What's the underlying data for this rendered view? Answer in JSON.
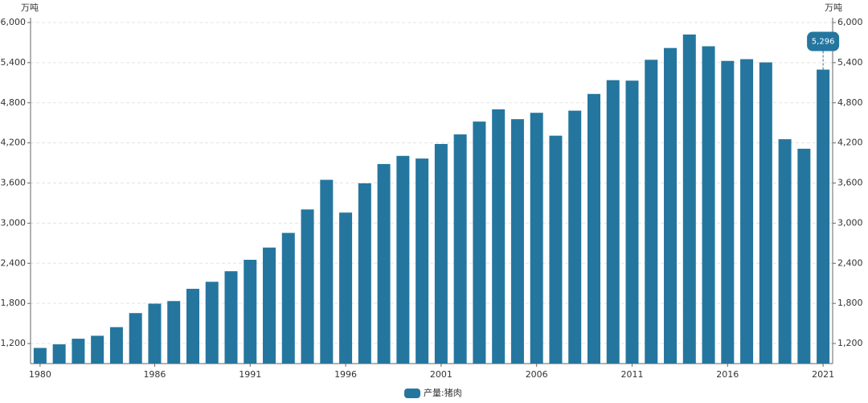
{
  "chart_data": {
    "type": "bar",
    "y_label": "万吨",
    "y2_label": "万吨",
    "categories": [
      "1980",
      null,
      null,
      null,
      null,
      null,
      "1986",
      null,
      null,
      null,
      null,
      "1991",
      null,
      null,
      null,
      null,
      "1996",
      null,
      null,
      null,
      null,
      "2001",
      null,
      null,
      null,
      null,
      "2006",
      null,
      null,
      null,
      null,
      "2011",
      null,
      null,
      null,
      null,
      "2016",
      null,
      null,
      null,
      null,
      "2021"
    ],
    "series": [
      {
        "name": "产量:猪肉",
        "color": "#24769f",
        "values": [
          1134,
          1188,
          1272,
          1316,
          1445,
          1655,
          1796,
          1835,
          2018,
          2123,
          2281,
          2452,
          2635,
          2854,
          3205,
          3648,
          3158,
          3596,
          3884,
          4006,
          3966,
          4184,
          4327,
          4519,
          4702,
          4555,
          4650,
          4308,
          4682,
          4932,
          5138,
          5131,
          5443,
          5619,
          5821,
          5645,
          5426,
          5452,
          5404,
          4255,
          4113,
          5296
        ],
        "value_labels": [
          null,
          null,
          null,
          null,
          null,
          null,
          null,
          null,
          null,
          null,
          null,
          null,
          null,
          null,
          null,
          null,
          null,
          null,
          null,
          null,
          null,
          null,
          null,
          null,
          null,
          null,
          null,
          null,
          null,
          null,
          null,
          null,
          null,
          null,
          null,
          null,
          null,
          null,
          null,
          null,
          null,
          "5,296"
        ]
      }
    ],
    "ylim": [
      900,
      6000
    ],
    "yticks": [
      {
        "value": 1200,
        "label": "1,200"
      },
      {
        "value": 1800,
        "label": "1,800"
      },
      {
        "value": 2400,
        "label": "2,400"
      },
      {
        "value": 3000,
        "label": "3,000"
      },
      {
        "value": 3600,
        "label": "3,600"
      },
      {
        "value": 4200,
        "label": "4,200"
      },
      {
        "value": 4800,
        "label": "4,800"
      },
      {
        "value": 5400,
        "label": "5,400"
      },
      {
        "value": 6000,
        "label": "6,000"
      }
    ],
    "y2lim": [
      900,
      6000
    ],
    "y2ticks": [
      {
        "value": 1200,
        "label": "1,200"
      },
      {
        "value": 1800,
        "label": "1,800"
      },
      {
        "value": 2400,
        "label": "2,400"
      },
      {
        "value": 3000,
        "label": "3,000"
      },
      {
        "value": 3600,
        "label": "3,600"
      },
      {
        "value": 4200,
        "label": "4,200"
      },
      {
        "value": 4800,
        "label": "4,800"
      },
      {
        "value": 5400,
        "label": "5,400"
      },
      {
        "value": 6000,
        "label": "6,000"
      }
    ],
    "grid": true,
    "legend": "bottom"
  }
}
